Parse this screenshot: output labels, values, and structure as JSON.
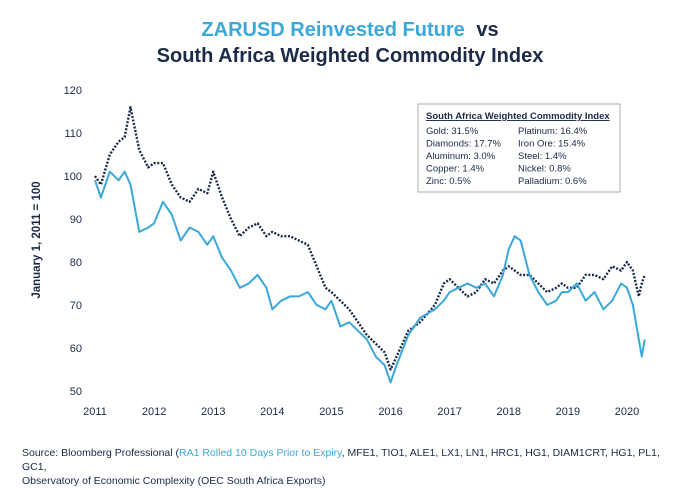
{
  "chart_data": {
    "type": "line",
    "title": [
      "ZARUSD Reinvested Future",
      "vs",
      "South Africa Weighted Commodity Index"
    ],
    "y_label": "January 1, 2011 = 100",
    "x": [
      2011.0,
      2011.1,
      2011.25,
      2011.4,
      2011.5,
      2011.6,
      2011.75,
      2011.9,
      2012.0,
      2012.15,
      2012.3,
      2012.45,
      2012.6,
      2012.75,
      2012.9,
      2013.0,
      2013.15,
      2013.3,
      2013.45,
      2013.6,
      2013.75,
      2013.9,
      2014.0,
      2014.15,
      2014.3,
      2014.45,
      2014.6,
      2014.75,
      2014.9,
      2015.0,
      2015.15,
      2015.3,
      2015.45,
      2015.6,
      2015.75,
      2015.9,
      2016.0,
      2016.1,
      2016.3,
      2016.5,
      2016.75,
      2016.9,
      2017.0,
      2017.15,
      2017.3,
      2017.45,
      2017.6,
      2017.75,
      2017.9,
      2018.0,
      2018.1,
      2018.2,
      2018.35,
      2018.5,
      2018.65,
      2018.8,
      2018.9,
      2019.0,
      2019.15,
      2019.3,
      2019.45,
      2019.6,
      2019.75,
      2019.9,
      2020.0,
      2020.1,
      2020.2,
      2020.25,
      2020.3
    ],
    "series": [
      {
        "color": "#3aa8d8",
        "dashed": false,
        "values": [
          99,
          95,
          101,
          99,
          101,
          98,
          87,
          88,
          89,
          94,
          91,
          85,
          88,
          87,
          84,
          86,
          81,
          78,
          74,
          75,
          77,
          74,
          69,
          71,
          72,
          72,
          73,
          70,
          69,
          71,
          65,
          66,
          64,
          62,
          58,
          56,
          52,
          56,
          63,
          67,
          69,
          71,
          73,
          74,
          75,
          74,
          75,
          72,
          77,
          83,
          86,
          85,
          77,
          73,
          70,
          71,
          73,
          73,
          75,
          71,
          73,
          69,
          71,
          75,
          74,
          70,
          62,
          58,
          62
        ]
      },
      {
        "color": "#1b2a47",
        "dashed": true,
        "values": [
          100,
          98,
          105,
          108,
          109,
          116,
          106,
          102,
          103,
          103,
          98,
          95,
          94,
          97,
          96,
          101,
          95,
          90,
          86,
          88,
          89,
          86,
          87,
          86,
          86,
          85,
          84,
          79,
          74,
          73,
          71,
          69,
          66,
          63,
          61,
          59,
          55,
          58,
          64,
          66,
          70,
          75,
          76,
          74,
          72,
          73,
          76,
          75,
          78,
          79,
          78,
          77,
          77,
          75,
          73,
          74,
          75,
          74,
          74,
          77,
          77,
          76,
          79,
          78,
          80,
          78,
          72,
          75,
          77
        ]
      }
    ],
    "xlim": [
      2011,
      2020.3
    ],
    "xticks": [
      2011,
      2012,
      2013,
      2014,
      2015,
      2016,
      2017,
      2018,
      2019,
      2020
    ],
    "ylim": [
      50,
      120
    ],
    "yticks": [
      50,
      60,
      70,
      80,
      90,
      100,
      110,
      120
    ],
    "grid": false,
    "annotation": {
      "title": "South Africa Weighted Commodity Index",
      "items": [
        "Gold: 31.5%",
        "Platinum: 16.4%",
        "Diamonds: 17.7%",
        "Iron Ore: 15.4%",
        "Aluminum: 3.0%",
        "Steel: 1.4%",
        "Copper: 1.4%",
        "Nickel: 0.8%",
        "Zinc: 0.5%",
        "Palladium: 0.6%"
      ]
    },
    "source": [
      "Source: Bloomberg Professional (",
      "RA1 Rolled 10 Days Prior to Expiry",
      ", MFE1, TIO1, ALE1, LX1, LN1, HRC1, HG1, DIAM1CRT, HG1, PL1, GC1,",
      "Observatory of Economic Complexity (OEC South Africa Exports)"
    ]
  }
}
